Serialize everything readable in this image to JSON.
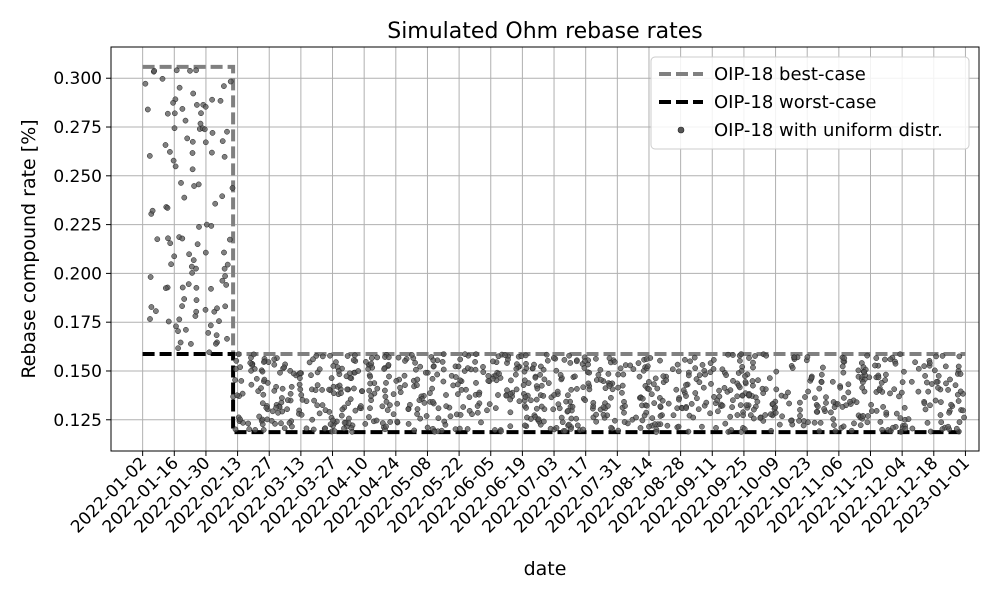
{
  "chart_data": {
    "type": "scatter",
    "title": "Simulated Ohm rebase rates",
    "xlabel": "date",
    "ylabel": "Rebase compound rate [%]",
    "x_range": [
      "2021-12-19",
      "2023-01-07"
    ],
    "ylim": [
      0.109,
      0.316
    ],
    "grid": true,
    "legend_position": "top-right",
    "x_ticks": [
      "2022-01-02",
      "2022-01-16",
      "2022-01-30",
      "2022-02-13",
      "2022-02-27",
      "2022-03-13",
      "2022-03-27",
      "2022-04-10",
      "2022-04-24",
      "2022-05-08",
      "2022-05-22",
      "2022-06-05",
      "2022-06-19",
      "2022-07-03",
      "2022-07-17",
      "2022-07-31",
      "2022-08-14",
      "2022-08-28",
      "2022-09-11",
      "2022-09-25",
      "2022-10-09",
      "2022-10-23",
      "2022-11-06",
      "2022-11-20",
      "2022-12-04",
      "2022-12-18",
      "2023-01-01"
    ],
    "y_ticks": [
      "0.125",
      "0.150",
      "0.175",
      "0.200",
      "0.225",
      "0.250",
      "0.275",
      "0.300"
    ],
    "series": [
      {
        "name": "OIP-18 best-case",
        "kind": "line",
        "style": "dashed",
        "color": "#808080",
        "points": [
          [
            "2022-01-02",
            0.3058
          ],
          [
            "2022-02-11",
            0.3058
          ],
          [
            "2022-02-11",
            0.1587
          ],
          [
            "2023-01-01",
            0.1587
          ]
        ]
      },
      {
        "name": "OIP-18 worst-case",
        "kind": "line",
        "style": "dashed",
        "color": "#000000",
        "points": [
          [
            "2022-01-02",
            0.1587
          ],
          [
            "2022-02-11",
            0.1587
          ],
          [
            "2022-02-11",
            0.1187
          ],
          [
            "2023-01-01",
            0.1187
          ]
        ]
      },
      {
        "name": "OIP-18 with uniform distr.",
        "kind": "scatter",
        "color": "#555555",
        "distribution": "uniform",
        "count": 1040,
        "regions": [
          {
            "x_start": "2022-01-02",
            "x_end": "2022-02-11",
            "y_min": 0.1587,
            "y_max": 0.3058
          },
          {
            "x_start": "2022-02-11",
            "x_end": "2023-01-01",
            "y_min": 0.1187,
            "y_max": 0.1587
          }
        ]
      }
    ]
  },
  "colors": {
    "best_case": "#808080",
    "worst_case": "#000000",
    "scatter": "#555555",
    "grid": "#b0b0b0"
  }
}
